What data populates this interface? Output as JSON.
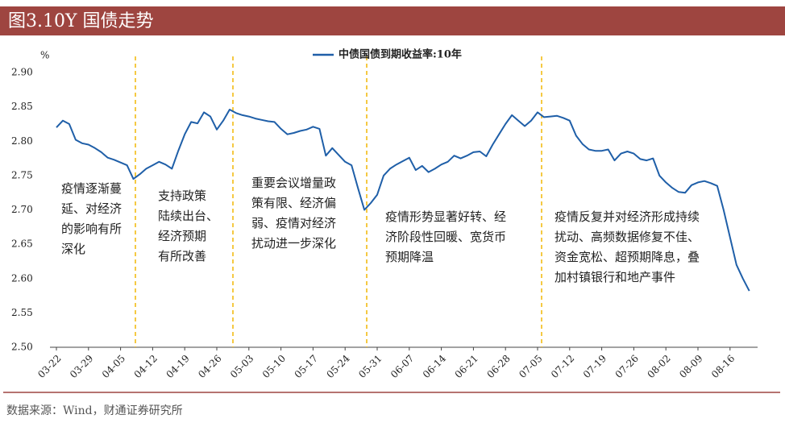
{
  "chart_data": {
    "type": "line",
    "title": "图3.10Y 国债走势",
    "y_unit": "%",
    "categories": [
      "03-22",
      null,
      null,
      null,
      null,
      "03-29",
      null,
      null,
      null,
      null,
      "04-05",
      null,
      null,
      null,
      null,
      "04-12",
      null,
      null,
      null,
      null,
      "04-19",
      null,
      null,
      null,
      null,
      "04-26",
      null,
      null,
      null,
      null,
      "05-03",
      null,
      null,
      null,
      null,
      "05-10",
      null,
      null,
      null,
      null,
      "05-17",
      null,
      null,
      null,
      null,
      "05-24",
      null,
      null,
      null,
      null,
      "05-31",
      null,
      null,
      null,
      null,
      "06-07",
      null,
      null,
      null,
      null,
      "06-14",
      null,
      null,
      null,
      null,
      "06-21",
      null,
      null,
      null,
      null,
      "06-28",
      null,
      null,
      null,
      null,
      "07-05",
      null,
      null,
      null,
      null,
      "07-12",
      null,
      null,
      null,
      null,
      "07-19",
      null,
      null,
      null,
      null,
      "07-26",
      null,
      null,
      null,
      null,
      "08-02",
      null,
      null,
      null,
      null,
      "08-09",
      null,
      null,
      null,
      null,
      "08-16",
      null,
      null,
      null
    ],
    "series": [
      {
        "name": "中债国债到期收益率:10年",
        "color": "#1f5fa8",
        "values": [
          2.82,
          2.83,
          2.825,
          2.802,
          2.797,
          2.795,
          2.79,
          2.784,
          2.776,
          2.773,
          2.769,
          2.765,
          2.745,
          2.752,
          2.76,
          2.765,
          2.77,
          2.766,
          2.76,
          2.786,
          2.81,
          2.828,
          2.826,
          2.842,
          2.836,
          2.817,
          2.83,
          2.846,
          2.841,
          2.838,
          2.836,
          2.833,
          2.831,
          2.829,
          2.828,
          2.818,
          2.81,
          2.812,
          2.815,
          2.817,
          2.821,
          2.818,
          2.779,
          2.79,
          2.78,
          2.77,
          2.765,
          2.732,
          2.7,
          2.71,
          2.722,
          2.75,
          2.76,
          2.766,
          2.771,
          2.776,
          2.758,
          2.764,
          2.755,
          2.76,
          2.766,
          2.77,
          2.779,
          2.775,
          2.779,
          2.784,
          2.785,
          2.778,
          2.795,
          2.81,
          2.825,
          2.838,
          2.83,
          2.822,
          2.83,
          2.842,
          2.835,
          2.836,
          2.837,
          2.834,
          2.83,
          2.808,
          2.796,
          2.788,
          2.786,
          2.786,
          2.788,
          2.772,
          2.782,
          2.785,
          2.782,
          2.774,
          2.772,
          2.775,
          2.75,
          2.74,
          2.732,
          2.726,
          2.725,
          2.736,
          2.74,
          2.742,
          2.739,
          2.735,
          2.7,
          2.66,
          2.62,
          2.6,
          2.582
        ]
      }
    ],
    "ylim": [
      2.5,
      2.9
    ],
    "yticks": [
      {
        "value": 2.5,
        "label": "2.50"
      },
      2.55,
      {
        "value": 2.6,
        "label": "2.60"
      },
      2.65,
      {
        "value": 2.7,
        "label": "2.70"
      },
      2.75,
      {
        "value": 2.8,
        "label": "2.80"
      },
      2.85,
      {
        "value": 2.9,
        "label": "2.90"
      }
    ],
    "grid": false,
    "legend": "top",
    "annotations": [
      {
        "lines": [
          "疫情逐渐蔓",
          "延、对经济",
          "的影响有所",
          "深化"
        ]
      },
      {
        "lines": [
          "支持政策",
          "陆续出台、",
          "经济预期",
          "有所改善"
        ]
      },
      {
        "lines": [
          "重要会议增量政",
          "策有限、经济偏",
          "弱、疫情对经济",
          "扰动进一步深化"
        ]
      },
      {
        "lines": [
          "疫情形势显著好转、经",
          "济阶段性回暖、宽货币",
          "预期降温"
        ]
      },
      {
        "lines": [
          "疫情反复并对经济形成持续",
          "扰动、高频数据修复不佳、",
          "资金宽松、超预期降息，叠",
          "加村镇银行和地产事件"
        ]
      }
    ],
    "source": "数据来源：Wind，财通证券研究所"
  }
}
